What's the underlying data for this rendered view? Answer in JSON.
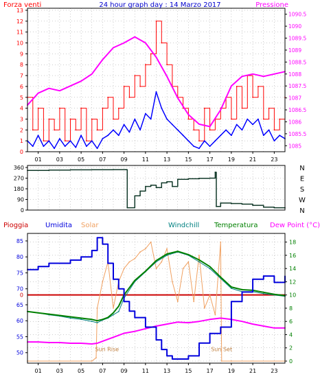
{
  "title": "24 hour graph day : 14 Marzo 2017",
  "colors": {
    "wind": "#ff0000",
    "gust": "#0000ff",
    "pressure": "#ff00ff",
    "direction": "#103828",
    "zero_line": "#cc0000",
    "humidity": "#0000dd",
    "solar": "#f0a060",
    "windchill": "#008080",
    "temperature": "#008000",
    "dewpoint": "#ff00ff",
    "axis": "#000000",
    "grid": "#999999",
    "label_sunrise": "#c08040"
  },
  "chart_data": [
    {
      "type": "line",
      "title": "24 hour graph day : 14 Marzo 2017",
      "left_axis_label": "Forza venti",
      "right_axis_label": "Pressione",
      "x_ticks": [
        "01",
        "03",
        "05",
        "07",
        "09",
        "11",
        "13",
        "15",
        "17",
        "19",
        "21",
        "23"
      ],
      "xlim": [
        0,
        24
      ],
      "left_ticks": [
        "0",
        "1",
        "2",
        "3",
        "4",
        "5",
        "6",
        "7",
        "8",
        "9",
        "10",
        "11",
        "12",
        "13"
      ],
      "ylim_left": [
        0,
        13
      ],
      "right_ticks": [
        "1085",
        "1085.5",
        "1086",
        "1086.5",
        "1087",
        "1087.5",
        "1088",
        "1088.5",
        "1089",
        "1089.5",
        "1090",
        "1090.5"
      ],
      "ylim_right": [
        1084.75,
        1090.75
      ],
      "grid": true,
      "series": [
        {
          "key": "wind",
          "axis": "left",
          "x": [
            0,
            0.5,
            1,
            1.5,
            2,
            2.5,
            3,
            3.5,
            4,
            4.5,
            5,
            5.5,
            6,
            6.5,
            7,
            7.5,
            8,
            8.5,
            9,
            9.5,
            10,
            10.5,
            11,
            11.5,
            12,
            12.5,
            13,
            13.5,
            14,
            14.5,
            15,
            15.5,
            16,
            16.5,
            17,
            17.5,
            18,
            18.5,
            19,
            19.5,
            20,
            20.5,
            21,
            21.5,
            22,
            22.5,
            23,
            23.5,
            24
          ],
          "values": [
            5,
            2,
            4,
            1,
            3,
            2,
            4,
            1,
            3,
            2,
            4,
            1,
            3,
            2,
            4,
            5,
            3,
            4,
            6,
            5,
            7,
            6,
            8,
            9,
            12,
            10,
            8,
            6,
            5,
            4,
            3,
            2,
            1,
            4,
            2,
            3,
            4,
            5,
            3,
            6,
            4,
            7,
            5,
            6,
            3,
            4,
            2,
            3,
            5
          ]
        },
        {
          "key": "gust",
          "axis": "left",
          "x": [
            0,
            0.5,
            1,
            1.5,
            2,
            2.5,
            3,
            3.5,
            4,
            4.5,
            5,
            5.5,
            6,
            6.5,
            7,
            7.5,
            8,
            8.5,
            9,
            9.5,
            10,
            10.5,
            11,
            11.5,
            12,
            12.5,
            13,
            13.5,
            14,
            14.5,
            15,
            15.5,
            16,
            16.5,
            17,
            17.5,
            18,
            18.5,
            19,
            19.5,
            20,
            20.5,
            21,
            21.5,
            22,
            22.5,
            23,
            23.5,
            24
          ],
          "values": [
            1,
            0.5,
            1.5,
            0.5,
            1,
            0.3,
            1.2,
            0.5,
            1,
            0.4,
            1.5,
            0.5,
            1,
            0.3,
            1.2,
            1.5,
            2,
            1.5,
            2.5,
            1.8,
            3,
            2,
            3.5,
            3,
            5.5,
            4,
            3,
            2.5,
            2,
            1.5,
            1,
            0.5,
            0.3,
            1,
            0.5,
            1,
            1.5,
            2,
            1.5,
            2.5,
            2,
            3,
            2.5,
            3,
            1.5,
            2,
            1,
            1.5,
            1.2
          ]
        },
        {
          "key": "pressure",
          "axis": "right",
          "x": [
            0,
            1,
            2,
            3,
            4,
            5,
            6,
            7,
            8,
            9,
            10,
            11,
            12,
            13,
            14,
            15,
            16,
            17,
            18,
            19,
            20,
            21,
            22,
            23,
            24
          ],
          "values": [
            1086.7,
            1087.2,
            1087.4,
            1087.3,
            1087.5,
            1087.7,
            1088.0,
            1088.6,
            1089.1,
            1089.3,
            1089.55,
            1089.3,
            1088.7,
            1087.9,
            1087.0,
            1086.3,
            1085.9,
            1085.8,
            1086.5,
            1087.5,
            1087.9,
            1088.0,
            1087.9,
            1088.0,
            1088.1
          ]
        }
      ]
    },
    {
      "type": "line",
      "title": "",
      "y_ticks": [
        "0",
        "90",
        "180",
        "270",
        "360"
      ],
      "ylim": [
        0,
        360
      ],
      "right_labels": [
        "N",
        "W",
        "S",
        "E",
        "N"
      ],
      "xlim": [
        0,
        24
      ],
      "series": [
        {
          "key": "direction",
          "x": [
            0,
            2,
            4,
            6,
            8,
            9.2,
            9.3,
            10,
            10.5,
            11,
            11.5,
            12,
            12.5,
            13,
            13.5,
            14,
            15,
            16,
            17,
            17.5,
            17.6,
            18,
            19,
            20,
            21,
            22,
            23,
            24
          ],
          "values": [
            335,
            338,
            340,
            341,
            342,
            342,
            20,
            120,
            160,
            200,
            210,
            190,
            230,
            240,
            200,
            260,
            265,
            268,
            270,
            320,
            30,
            60,
            55,
            50,
            40,
            25,
            20,
            18
          ]
        }
      ]
    },
    {
      "type": "line",
      "title": "",
      "header_labels": [
        "Pioggia",
        "Umidita",
        "Solar",
        "Windchill",
        "Temperatura",
        "Dew Point (°C)"
      ],
      "left_ticks": [
        "50",
        "55",
        "60",
        "65",
        "70",
        "75",
        "80",
        "85"
      ],
      "ylim_left": [
        45,
        88
      ],
      "right_ticks": [
        "0",
        "2",
        "4",
        "6",
        "8",
        "10",
        "12",
        "14",
        "16",
        "18"
      ],
      "ylim_right": [
        0,
        19
      ],
      "rain_axis_label": "0",
      "x_ticks": [
        "01",
        "03",
        "05",
        "07",
        "09",
        "11",
        "13",
        "15",
        "17",
        "19",
        "21",
        "23"
      ],
      "xlim": [
        0,
        24
      ],
      "annotations": [
        "Sun Rise",
        "Sun Set"
      ],
      "series": [
        {
          "key": "humidity",
          "axis": "left",
          "x": [
            0,
            1,
            2,
            3,
            4,
            5,
            6,
            6.5,
            7,
            7.5,
            8,
            8.5,
            9,
            9.5,
            10,
            11,
            12,
            12.5,
            13,
            13.5,
            14,
            15,
            16,
            17,
            18,
            19,
            20,
            21,
            22,
            23,
            24
          ],
          "values": [
            76,
            77,
            78,
            78,
            79,
            80,
            82,
            86,
            84,
            78,
            73,
            70,
            66,
            63,
            61,
            58,
            54,
            51,
            49,
            48,
            48,
            49,
            53,
            56,
            58,
            66,
            69,
            73,
            74,
            72,
            74
          ]
        },
        {
          "key": "solar",
          "axis": "right",
          "x": [
            0,
            6,
            6.4,
            6.5,
            7,
            7.5,
            8,
            8.5,
            9,
            9.5,
            10,
            10.5,
            11,
            11.5,
            12,
            12.5,
            13,
            13.5,
            14,
            14.5,
            15,
            15.5,
            16,
            16.5,
            17,
            17.5,
            18,
            18.1,
            19,
            24
          ],
          "values": [
            0,
            0,
            0.5,
            8,
            12,
            15,
            8,
            12,
            14,
            15,
            15.5,
            16.5,
            17,
            18,
            14,
            15,
            17,
            12,
            9,
            14,
            15,
            9,
            16,
            8,
            10,
            7,
            18,
            0,
            0,
            0
          ]
        },
        {
          "key": "windchill",
          "axis": "right",
          "x": [
            0,
            1,
            2,
            3,
            4,
            5,
            6,
            6.5,
            7,
            7.5,
            8,
            8.5,
            9,
            10,
            11,
            12,
            13,
            14,
            15,
            16,
            17,
            18,
            19,
            20,
            21,
            22,
            23,
            24
          ],
          "values": [
            7.5,
            7.3,
            7.0,
            6.8,
            6.5,
            6.3,
            6.0,
            5.8,
            6.2,
            6.5,
            7.0,
            7.5,
            9.5,
            12.0,
            13.5,
            15.0,
            16.0,
            16.5,
            16.0,
            15.0,
            14.0,
            12.5,
            11.0,
            10.5,
            10.5,
            10.2,
            10.0,
            9.8
          ]
        },
        {
          "key": "temperature",
          "axis": "right",
          "x": [
            0,
            1,
            2,
            3,
            4,
            5,
            6,
            6.5,
            7,
            7.5,
            8,
            8.5,
            9,
            10,
            11,
            12,
            13,
            14,
            15,
            16,
            17,
            18,
            19,
            20,
            21,
            22,
            23,
            24
          ],
          "values": [
            7.5,
            7.3,
            7.1,
            6.9,
            6.7,
            6.5,
            6.3,
            6.1,
            6.3,
            6.6,
            7.3,
            8.3,
            10,
            12.2,
            13.6,
            15.2,
            16.2,
            16.6,
            16.1,
            15.3,
            14.3,
            12.7,
            11.2,
            10.8,
            10.7,
            10.4,
            10.1,
            9.9
          ]
        },
        {
          "key": "dewpoint",
          "axis": "right",
          "x": [
            0,
            1,
            2,
            3,
            4,
            5,
            6,
            6.5,
            7,
            7.5,
            8,
            8.5,
            9,
            10,
            11,
            12,
            13,
            14,
            15,
            16,
            17,
            18,
            19,
            20,
            21,
            22,
            23,
            24
          ],
          "values": [
            2.9,
            2.9,
            2.8,
            2.8,
            2.7,
            2.7,
            2.6,
            2.7,
            3.0,
            3.3,
            3.6,
            3.9,
            4.2,
            4.5,
            4.9,
            5.3,
            5.6,
            5.9,
            5.8,
            6.0,
            6.3,
            6.5,
            6.3,
            6.0,
            5.6,
            5.3,
            5.0,
            5.0
          ]
        }
      ]
    }
  ]
}
